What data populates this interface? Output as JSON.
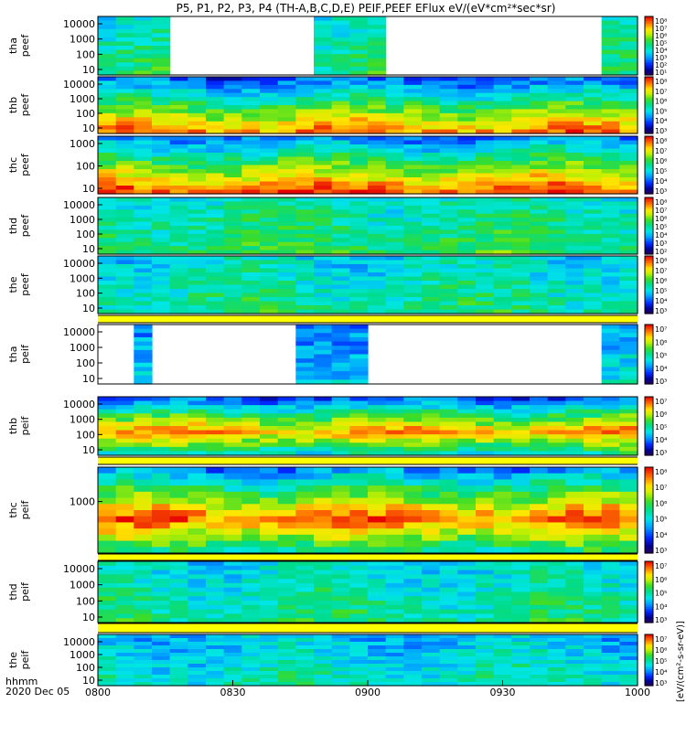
{
  "chart_data": {
    "type": "heatmap",
    "title": "P5, P1, P2, P3, P4 (TH-A,B,C,D,E) PEIF,PEEF EFlux eV/(eV*cm²*sec*sr)",
    "x_ticks": [
      "0800",
      "0830",
      "0900",
      "0930",
      "1000"
    ],
    "x_corner_label": "hhmm",
    "date_label": "2020 Dec 05",
    "cbar_axis_label": "[eV/(cm²-s-sr-eV)]",
    "panels": [
      {
        "id": "tha-peef",
        "ylabel1": "tha",
        "ylabel2": "peef",
        "y_ticks": [
          "10000",
          "1000",
          "100",
          "10"
        ],
        "cbar_ticks": [
          "10⁸",
          "10⁷",
          "10⁶",
          "10⁵",
          "10⁴",
          "10³",
          "10²",
          "10¹"
        ],
        "base": 0.45,
        "coverage": [
          [
            0,
            0.13
          ],
          [
            0.41,
            0.53
          ],
          [
            0.93,
            1.0
          ]
        ],
        "profile": "flat"
      },
      {
        "id": "thb-peef",
        "ylabel1": "thb",
        "ylabel2": "peef",
        "y_ticks": [
          "10000",
          "1000",
          "100",
          "10"
        ],
        "cbar_ticks": [
          "10⁸",
          "10⁷",
          "10⁶",
          "10⁵",
          "10⁴",
          "10³"
        ],
        "base": 0.55,
        "coverage": [
          [
            0,
            1.0
          ]
        ],
        "profile": "low_hot"
      },
      {
        "id": "thc-peef",
        "ylabel1": "thc",
        "ylabel2": "peef",
        "y_ticks": [
          "1000",
          "100",
          "10"
        ],
        "cbar_ticks": [
          "10⁸",
          "10⁷",
          "10⁶",
          "10⁵",
          "10⁴",
          "10³"
        ],
        "base": 0.6,
        "coverage": [
          [
            0,
            1.0
          ]
        ],
        "profile": "low_hot"
      },
      {
        "id": "thd-peef",
        "ylabel1": "thd",
        "ylabel2": "peef",
        "y_ticks": [
          "10000",
          "1000",
          "100",
          "10"
        ],
        "cbar_ticks": [
          "10⁸",
          "10⁷",
          "10⁶",
          "10⁵",
          "10⁴",
          "10³",
          "10²"
        ],
        "base": 0.5,
        "coverage": [
          [
            0,
            1.0
          ]
        ],
        "profile": "flat"
      },
      {
        "id": "the-peef",
        "ylabel1": "the",
        "ylabel2": "peef",
        "y_ticks": [
          "10000",
          "1000",
          "100",
          "10"
        ],
        "cbar_ticks": [
          "10⁸",
          "10⁷",
          "10⁶",
          "10⁵",
          "10⁴",
          "10³"
        ],
        "base": 0.45,
        "coverage": [
          [
            0,
            1.0
          ]
        ],
        "profile": "flat"
      },
      {
        "id": "tha-peif",
        "ylabel1": "tha",
        "ylabel2": "peif",
        "y_ticks": [
          "10000",
          "1000",
          "100",
          "10"
        ],
        "cbar_ticks": [
          "10⁷",
          "10⁶",
          "10⁵",
          "10⁴",
          "10³"
        ],
        "base": 0.35,
        "coverage": [
          [
            0.06,
            0.11
          ],
          [
            0.38,
            0.49
          ],
          [
            0.93,
            1.0
          ]
        ],
        "profile": "flat"
      },
      {
        "id": "thb-peif",
        "ylabel1": "thb",
        "ylabel2": "peif",
        "y_ticks": [
          "10000",
          "1000",
          "100",
          "10"
        ],
        "cbar_ticks": [
          "10⁷",
          "10⁶",
          "10⁵",
          "10⁴",
          "10³"
        ],
        "base": 0.5,
        "coverage": [
          [
            0,
            1.0
          ]
        ],
        "profile": "mid_hot"
      },
      {
        "id": "thc-peif",
        "ylabel1": "thc",
        "ylabel2": "peif",
        "y_ticks": [
          "1000"
        ],
        "cbar_ticks": [
          "10⁸",
          "10⁷",
          "10⁶",
          "10⁵",
          "10⁴",
          "10³"
        ],
        "base": 0.55,
        "coverage": [
          [
            0,
            1.0
          ]
        ],
        "profile": "mid_hot"
      },
      {
        "id": "thd-peif",
        "ylabel1": "thd",
        "ylabel2": "peif",
        "y_ticks": [
          "10000",
          "1000",
          "100",
          "10"
        ],
        "cbar_ticks": [
          "10⁷",
          "10⁶",
          "10⁵",
          "10⁴",
          "10³"
        ],
        "base": 0.45,
        "coverage": [
          [
            0,
            1.0
          ]
        ],
        "profile": "flat"
      },
      {
        "id": "the-peif",
        "ylabel1": "the",
        "ylabel2": "peif",
        "y_ticks": [
          "10000",
          "1000",
          "100",
          "10"
        ],
        "cbar_ticks": [
          "10⁷",
          "10⁶",
          "10⁵",
          "10⁴",
          "10³"
        ],
        "base": 0.4,
        "coverage": [
          [
            0,
            1.0
          ]
        ],
        "profile": "flat"
      }
    ]
  }
}
